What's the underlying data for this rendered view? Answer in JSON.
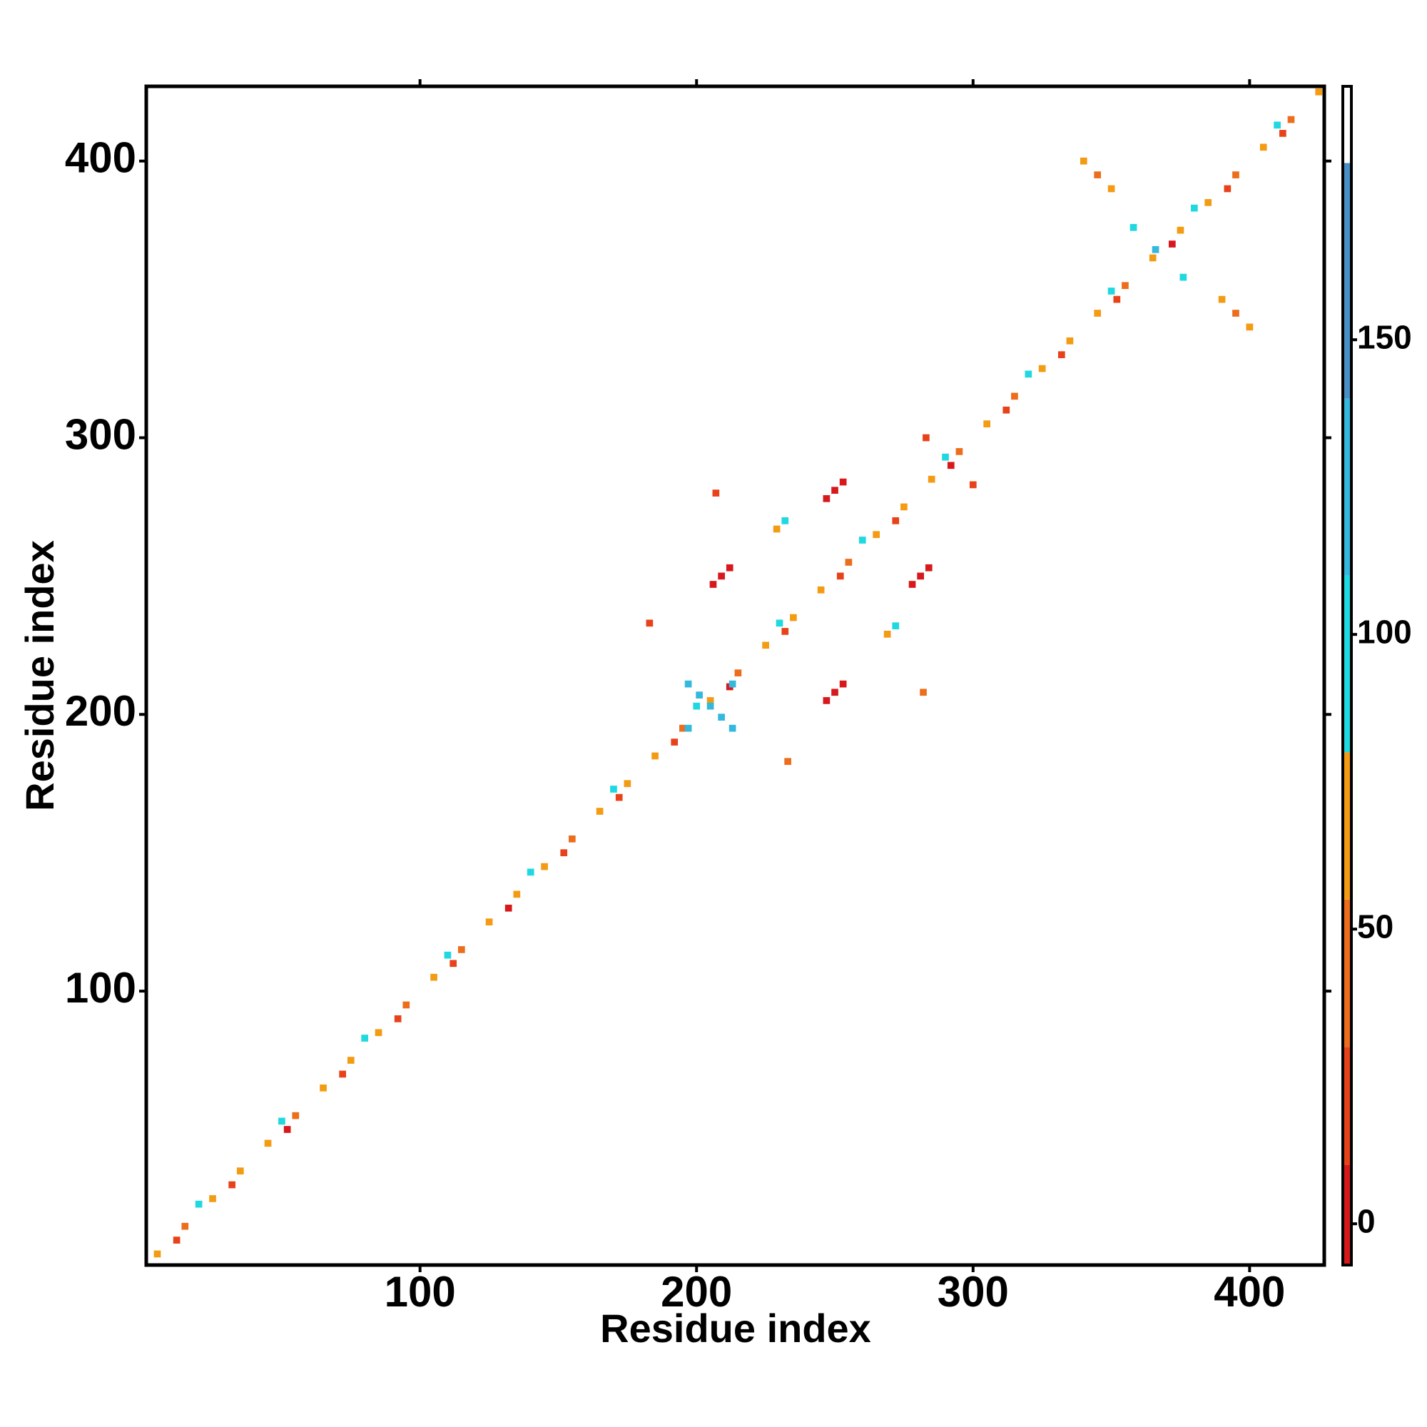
{
  "chart_data": {
    "type": "heatmap",
    "x_label": "Residue index",
    "y_label": "Residue index",
    "xlim": [
      1,
      427
    ],
    "ylim": [
      1,
      427
    ],
    "xticks": [
      100,
      200,
      300,
      400
    ],
    "yticks": [
      100,
      200,
      300,
      400
    ],
    "colorbar": {
      "lim": [
        -7,
        193
      ],
      "ticks": [
        0,
        50,
        100,
        150
      ],
      "breaks": [
        -7,
        10,
        30,
        55,
        80,
        110,
        140,
        180,
        193
      ],
      "colors": [
        "#d7191c",
        "#e8421a",
        "#ec6e1c",
        "#f39b12",
        "#1fd8e0",
        "#35b8dd",
        "#4a8fc4",
        "#ffffff"
      ]
    },
    "cells": [
      {
        "x": 5,
        "y": 5,
        "value": 60
      },
      {
        "x": 15,
        "y": 15,
        "value": 48
      },
      {
        "x": 25,
        "y": 25,
        "value": 70
      },
      {
        "x": 35,
        "y": 35,
        "value": 55
      },
      {
        "x": 45,
        "y": 45,
        "value": 65
      },
      {
        "x": 55,
        "y": 55,
        "value": 50
      },
      {
        "x": 65,
        "y": 65,
        "value": 72
      },
      {
        "x": 75,
        "y": 75,
        "value": 58
      },
      {
        "x": 85,
        "y": 85,
        "value": 62
      },
      {
        "x": 95,
        "y": 95,
        "value": 45
      },
      {
        "x": 105,
        "y": 105,
        "value": 60
      },
      {
        "x": 115,
        "y": 115,
        "value": 48
      },
      {
        "x": 125,
        "y": 125,
        "value": 70
      },
      {
        "x": 135,
        "y": 135,
        "value": 55
      },
      {
        "x": 145,
        "y": 145,
        "value": 65
      },
      {
        "x": 155,
        "y": 155,
        "value": 50
      },
      {
        "x": 165,
        "y": 165,
        "value": 72
      },
      {
        "x": 175,
        "y": 175,
        "value": 58
      },
      {
        "x": 185,
        "y": 185,
        "value": 62
      },
      {
        "x": 195,
        "y": 195,
        "value": 45
      },
      {
        "x": 205,
        "y": 205,
        "value": 60
      },
      {
        "x": 215,
        "y": 215,
        "value": 48
      },
      {
        "x": 225,
        "y": 225,
        "value": 70
      },
      {
        "x": 235,
        "y": 235,
        "value": 55
      },
      {
        "x": 245,
        "y": 245,
        "value": 65
      },
      {
        "x": 255,
        "y": 255,
        "value": 50
      },
      {
        "x": 265,
        "y": 265,
        "value": 72
      },
      {
        "x": 275,
        "y": 275,
        "value": 58
      },
      {
        "x": 285,
        "y": 285,
        "value": 62
      },
      {
        "x": 295,
        "y": 295,
        "value": 45
      },
      {
        "x": 305,
        "y": 305,
        "value": 60
      },
      {
        "x": 315,
        "y": 315,
        "value": 48
      },
      {
        "x": 325,
        "y": 325,
        "value": 70
      },
      {
        "x": 335,
        "y": 335,
        "value": 55
      },
      {
        "x": 345,
        "y": 345,
        "value": 65
      },
      {
        "x": 355,
        "y": 355,
        "value": 50
      },
      {
        "x": 365,
        "y": 365,
        "value": 72
      },
      {
        "x": 375,
        "y": 375,
        "value": 58
      },
      {
        "x": 385,
        "y": 385,
        "value": 62
      },
      {
        "x": 395,
        "y": 395,
        "value": 45
      },
      {
        "x": 405,
        "y": 405,
        "value": 60
      },
      {
        "x": 415,
        "y": 415,
        "value": 48
      },
      {
        "x": 425,
        "y": 425,
        "value": 70
      },
      {
        "x": 12,
        "y": 10,
        "value": 10
      },
      {
        "x": 32,
        "y": 30,
        "value": 20
      },
      {
        "x": 52,
        "y": 50,
        "value": 5
      },
      {
        "x": 72,
        "y": 70,
        "value": 25
      },
      {
        "x": 92,
        "y": 90,
        "value": 10
      },
      {
        "x": 112,
        "y": 110,
        "value": 20
      },
      {
        "x": 132,
        "y": 130,
        "value": 5
      },
      {
        "x": 152,
        "y": 150,
        "value": 25
      },
      {
        "x": 172,
        "y": 170,
        "value": 10
      },
      {
        "x": 192,
        "y": 190,
        "value": 20
      },
      {
        "x": 212,
        "y": 210,
        "value": 5
      },
      {
        "x": 232,
        "y": 230,
        "value": 25
      },
      {
        "x": 252,
        "y": 250,
        "value": 10
      },
      {
        "x": 272,
        "y": 270,
        "value": 20
      },
      {
        "x": 292,
        "y": 290,
        "value": 5
      },
      {
        "x": 312,
        "y": 310,
        "value": 25
      },
      {
        "x": 332,
        "y": 330,
        "value": 10
      },
      {
        "x": 352,
        "y": 350,
        "value": 20
      },
      {
        "x": 372,
        "y": 370,
        "value": 5
      },
      {
        "x": 392,
        "y": 390,
        "value": 25
      },
      {
        "x": 412,
        "y": 410,
        "value": 10
      },
      {
        "x": 20,
        "y": 23,
        "value": 92
      },
      {
        "x": 50,
        "y": 53,
        "value": 100
      },
      {
        "x": 80,
        "y": 83,
        "value": 96
      },
      {
        "x": 110,
        "y": 113,
        "value": 105
      },
      {
        "x": 140,
        "y": 143,
        "value": 92
      },
      {
        "x": 170,
        "y": 173,
        "value": 100
      },
      {
        "x": 200,
        "y": 203,
        "value": 96
      },
      {
        "x": 230,
        "y": 233,
        "value": 105
      },
      {
        "x": 260,
        "y": 263,
        "value": 92
      },
      {
        "x": 290,
        "y": 293,
        "value": 100
      },
      {
        "x": 320,
        "y": 323,
        "value": 96
      },
      {
        "x": 350,
        "y": 353,
        "value": 105
      },
      {
        "x": 380,
        "y": 383,
        "value": 92
      },
      {
        "x": 410,
        "y": 413,
        "value": 100
      },
      {
        "x": 197,
        "y": 211,
        "value": 130
      },
      {
        "x": 201,
        "y": 207,
        "value": 130
      },
      {
        "x": 205,
        "y": 203,
        "value": 130
      },
      {
        "x": 209,
        "y": 199,
        "value": 130
      },
      {
        "x": 213,
        "y": 195,
        "value": 130
      },
      {
        "x": 197,
        "y": 195,
        "value": 130
      },
      {
        "x": 213,
        "y": 211,
        "value": 130
      },
      {
        "x": 206,
        "y": 247,
        "value": 5
      },
      {
        "x": 209,
        "y": 250,
        "value": 5
      },
      {
        "x": 212,
        "y": 253,
        "value": 8
      },
      {
        "x": 247,
        "y": 205,
        "value": 8
      },
      {
        "x": 250,
        "y": 208,
        "value": 5
      },
      {
        "x": 253,
        "y": 211,
        "value": 5
      },
      {
        "x": 247,
        "y": 278,
        "value": 5
      },
      {
        "x": 250,
        "y": 281,
        "value": 8
      },
      {
        "x": 253,
        "y": 284,
        "value": 5
      },
      {
        "x": 278,
        "y": 247,
        "value": 5
      },
      {
        "x": 281,
        "y": 250,
        "value": 8
      },
      {
        "x": 284,
        "y": 253,
        "value": 5
      },
      {
        "x": 340,
        "y": 400,
        "value": 60
      },
      {
        "x": 345,
        "y": 395,
        "value": 45
      },
      {
        "x": 350,
        "y": 390,
        "value": 60
      },
      {
        "x": 390,
        "y": 350,
        "value": 60
      },
      {
        "x": 395,
        "y": 345,
        "value": 45
      },
      {
        "x": 400,
        "y": 340,
        "value": 60
      },
      {
        "x": 366,
        "y": 368,
        "value": 120
      },
      {
        "x": 358,
        "y": 376,
        "value": 95
      },
      {
        "x": 376,
        "y": 358,
        "value": 95
      },
      {
        "x": 229,
        "y": 267,
        "value": 55
      },
      {
        "x": 232,
        "y": 270,
        "value": 95
      },
      {
        "x": 269,
        "y": 229,
        "value": 55
      },
      {
        "x": 272,
        "y": 232,
        "value": 95
      },
      {
        "x": 282,
        "y": 208,
        "value": 40
      },
      {
        "x": 300,
        "y": 283,
        "value": 20
      },
      {
        "x": 283,
        "y": 300,
        "value": 20
      },
      {
        "x": 207,
        "y": 280,
        "value": 20
      },
      {
        "x": 233,
        "y": 183,
        "value": 30
      },
      {
        "x": 183,
        "y": 233,
        "value": 20
      }
    ]
  }
}
